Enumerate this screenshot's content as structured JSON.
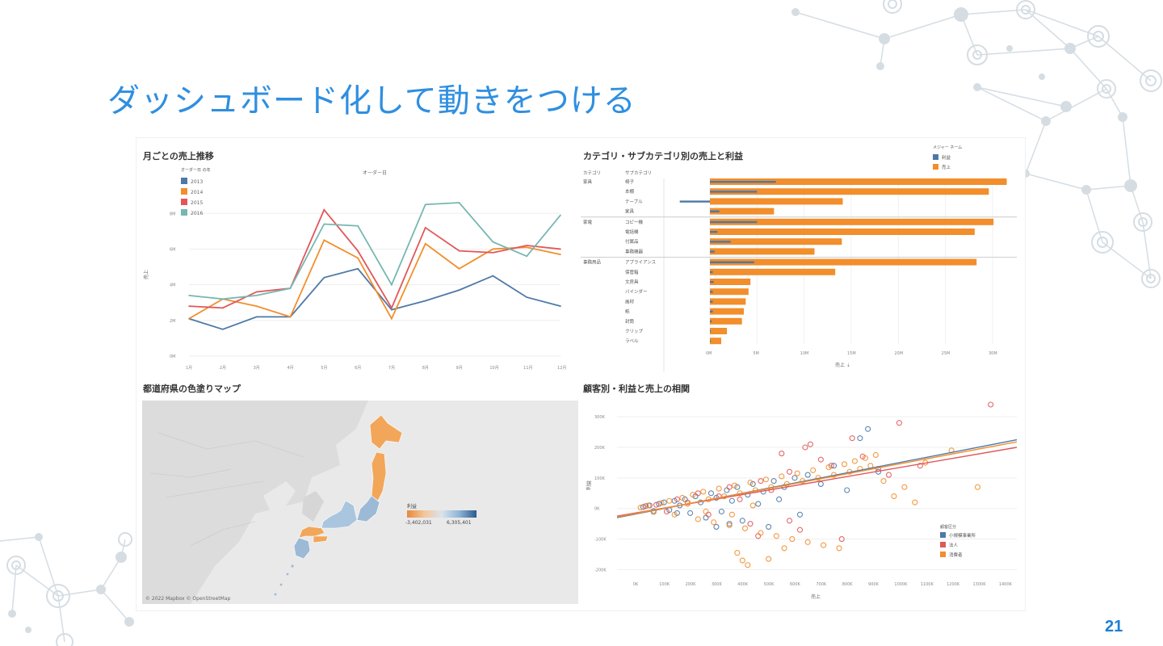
{
  "slide": {
    "title": "ダッシュボード化して動きをつける",
    "page_number": "21"
  },
  "colors": {
    "title": "#2f8fe0",
    "y2013": "#4e79a7",
    "y2014": "#f28e2b",
    "y2015": "#e15759",
    "y2016": "#76b7b2",
    "profit": "#4e79a7",
    "sales": "#f28e2b",
    "small_business": "#4e79a7",
    "consumer": "#f28e2b",
    "corporate": "#e15759"
  },
  "decorations": {
    "icons": [
      "network-node-pattern"
    ]
  },
  "chart_data": [
    {
      "type": "line",
      "title": "月ごとの売上推移",
      "legend_title": "オーダー日 の年",
      "top_label": "オーダー日",
      "ylabel": "売上",
      "ytick_labels": [
        "0M",
        "2M",
        "4M",
        "6M",
        "8M"
      ],
      "ylim": [
        0,
        8.6
      ],
      "categories": [
        "1月",
        "2月",
        "3月",
        "4月",
        "5月",
        "6月",
        "7月",
        "8月",
        "9月",
        "10月",
        "11月",
        "12月"
      ],
      "series": [
        {
          "name": "2013",
          "color": "#4e79a7",
          "values": [
            2.1,
            1.5,
            2.2,
            2.2,
            4.4,
            4.9,
            2.6,
            3.1,
            3.7,
            4.5,
            3.3,
            2.8
          ]
        },
        {
          "name": "2014",
          "color": "#f28e2b",
          "values": [
            2.1,
            3.2,
            2.8,
            2.2,
            6.5,
            5.5,
            2.1,
            6.3,
            4.9,
            6.0,
            6.1,
            5.7
          ]
        },
        {
          "name": "2015",
          "color": "#e15759",
          "values": [
            2.8,
            2.7,
            3.6,
            3.8,
            8.2,
            5.9,
            2.7,
            7.2,
            5.9,
            5.8,
            6.2,
            6.0
          ]
        },
        {
          "name": "2016",
          "color": "#76b7b2",
          "values": [
            3.4,
            3.2,
            3.4,
            3.8,
            7.4,
            7.3,
            4.0,
            8.5,
            8.6,
            6.4,
            5.6,
            7.9
          ]
        }
      ]
    },
    {
      "type": "bar",
      "title": "カテゴリ・サブカテゴリ別の売上と利益",
      "legend_title": "メジャー ネーム",
      "col_header_category": "カテゴリ",
      "col_header_subcategory": "サブカテゴリ",
      "xlabel": "売上 ⇣",
      "xtick_labels": [
        "0M",
        "5M",
        "10M",
        "15M",
        "20M",
        "25M",
        "30M"
      ],
      "xlim": [
        0,
        30
      ],
      "groups": [
        {
          "name": "家具",
          "rows": [
            {
              "label": "椅子",
              "sales": 31.5,
              "profit": 7.0
            },
            {
              "label": "本棚",
              "sales": 29.6,
              "profit": 5.0
            },
            {
              "label": "テーブル",
              "sales": 14.1,
              "profit": -3.2
            },
            {
              "label": "家具",
              "sales": 6.8,
              "profit": 1.0
            }
          ]
        },
        {
          "name": "家電",
          "rows": [
            {
              "label": "コピー機",
              "sales": 30.1,
              "profit": 5.0
            },
            {
              "label": "電話機",
              "sales": 28.1,
              "profit": 0.8
            },
            {
              "label": "付属品",
              "sales": 14.0,
              "profit": 2.2
            },
            {
              "label": "事務機器",
              "sales": 11.1,
              "profit": 0.5
            }
          ]
        },
        {
          "name": "事務用品",
          "rows": [
            {
              "label": "アプライアンス",
              "sales": 28.3,
              "profit": 4.7
            },
            {
              "label": "保管箱",
              "sales": 13.3,
              "profit": 0.3
            },
            {
              "label": "文房具",
              "sales": 4.3,
              "profit": 0.4
            },
            {
              "label": "バインダー",
              "sales": 4.1,
              "profit": 0.3
            },
            {
              "label": "画材",
              "sales": 3.8,
              "profit": 0.3
            },
            {
              "label": "紙",
              "sales": 3.6,
              "profit": 0.3
            },
            {
              "label": "封筒",
              "sales": 3.4,
              "profit": 0.2
            },
            {
              "label": "クリップ",
              "sales": 1.8,
              "profit": 0.1
            },
            {
              "label": "ラベル",
              "sales": 1.2,
              "profit": 0.1
            }
          ]
        }
      ],
      "series": [
        {
          "name": "利益",
          "color": "#4e79a7"
        },
        {
          "name": "売上",
          "color": "#f28e2b"
        }
      ]
    },
    {
      "type": "map",
      "title": "都道府県の色塗りマップ",
      "legend_title": "利益",
      "legend_min": "-3,402,031",
      "legend_max": "6,305,401",
      "credit": "© 2022 Mapbox © OpenStreetMap"
    },
    {
      "type": "scatter",
      "title": "顧客別・利益と売上の相関",
      "xlabel": "売上",
      "ylabel": "利益",
      "legend_title": "顧客区分",
      "xtick_labels": [
        "0K",
        "100K",
        "200K",
        "300K",
        "400K",
        "500K",
        "600K",
        "700K",
        "800K",
        "900K",
        "1000K",
        "1100K",
        "1200K",
        "1300K",
        "1400K"
      ],
      "ytick_labels": [
        "-200K",
        "-100K",
        "0K",
        "100K",
        "200K",
        "300K"
      ],
      "xlim": [
        -80,
        1450
      ],
      "ylim": [
        -220,
        340
      ],
      "series": [
        {
          "name": "小規模事業所",
          "color": "#4e79a7",
          "points": [
            [
              20,
              5
            ],
            [
              45,
              10
            ],
            [
              60,
              -8
            ],
            [
              80,
              15
            ],
            [
              100,
              20
            ],
            [
              120,
              -5
            ],
            [
              140,
              25
            ],
            [
              160,
              10
            ],
            [
              180,
              30
            ],
            [
              200,
              -15
            ],
            [
              220,
              40
            ],
            [
              240,
              20
            ],
            [
              260,
              -30
            ],
            [
              280,
              50
            ],
            [
              300,
              35
            ],
            [
              320,
              -10
            ],
            [
              340,
              60
            ],
            [
              360,
              25
            ],
            [
              380,
              70
            ],
            [
              400,
              -40
            ],
            [
              420,
              45
            ],
            [
              440,
              80
            ],
            [
              460,
              15
            ],
            [
              480,
              55
            ],
            [
              500,
              -60
            ],
            [
              520,
              90
            ],
            [
              540,
              30
            ],
            [
              560,
              70
            ],
            [
              600,
              100
            ],
            [
              620,
              -20
            ],
            [
              650,
              110
            ],
            [
              700,
              80
            ],
            [
              750,
              140
            ],
            [
              800,
              60
            ],
            [
              850,
              230
            ],
            [
              880,
              260
            ],
            [
              920,
              120
            ],
            [
              300,
              -60
            ],
            [
              350,
              -50
            ],
            [
              150,
              -15
            ]
          ]
        },
        {
          "name": "法人",
          "color": "#e15759",
          "points": [
            [
              30,
              8
            ],
            [
              70,
              12
            ],
            [
              110,
              -10
            ],
            [
              150,
              30
            ],
            [
              190,
              20
            ],
            [
              230,
              50
            ],
            [
              270,
              -20
            ],
            [
              310,
              40
            ],
            [
              350,
              70
            ],
            [
              390,
              30
            ],
            [
              430,
              -50
            ],
            [
              470,
              90
            ],
            [
              510,
              60
            ],
            [
              550,
              180
            ],
            [
              580,
              120
            ],
            [
              620,
              -70
            ],
            [
              660,
              210
            ],
            [
              700,
              160
            ],
            [
              740,
              140
            ],
            [
              780,
              -100
            ],
            [
              820,
              230
            ],
            [
              860,
              170
            ],
            [
              920,
              130
            ],
            [
              960,
              110
            ],
            [
              1000,
              280
            ],
            [
              1080,
              140
            ],
            [
              1350,
              340
            ],
            [
              580,
              -40
            ],
            [
              460,
              -90
            ],
            [
              640,
              200
            ]
          ]
        },
        {
          "name": "消費者",
          "color": "#f28e2b",
          "points": [
            [
              10,
              3
            ],
            [
              40,
              10
            ],
            [
              60,
              -12
            ],
            [
              90,
              18
            ],
            [
              120,
              25
            ],
            [
              140,
              -20
            ],
            [
              170,
              35
            ],
            [
              190,
              15
            ],
            [
              210,
              45
            ],
            [
              230,
              -35
            ],
            [
              250,
              55
            ],
            [
              270,
              30
            ],
            [
              290,
              -45
            ],
            [
              310,
              65
            ],
            [
              330,
              40
            ],
            [
              350,
              -55
            ],
            [
              370,
              75
            ],
            [
              390,
              50
            ],
            [
              410,
              -65
            ],
            [
              430,
              85
            ],
            [
              450,
              60
            ],
            [
              470,
              -80
            ],
            [
              490,
              95
            ],
            [
              510,
              70
            ],
            [
              530,
              -90
            ],
            [
              550,
              105
            ],
            [
              570,
              80
            ],
            [
              590,
              -100
            ],
            [
              610,
              115
            ],
            [
              630,
              90
            ],
            [
              650,
              -110
            ],
            [
              670,
              125
            ],
            [
              690,
              100
            ],
            [
              710,
              -120
            ],
            [
              730,
              135
            ],
            [
              750,
              110
            ],
            [
              770,
              -130
            ],
            [
              790,
              145
            ],
            [
              810,
              120
            ],
            [
              830,
              155
            ],
            [
              850,
              130
            ],
            [
              870,
              165
            ],
            [
              890,
              140
            ],
            [
              910,
              175
            ],
            [
              940,
              90
            ],
            [
              980,
              40
            ],
            [
              1020,
              70
            ],
            [
              1060,
              20
            ],
            [
              1100,
              150
            ],
            [
              1200,
              190
            ],
            [
              1300,
              70
            ],
            [
              400,
              -170
            ],
            [
              420,
              -185
            ],
            [
              380,
              -145
            ],
            [
              500,
              -165
            ],
            [
              560,
              -130
            ],
            [
              440,
              10
            ],
            [
              360,
              -20
            ],
            [
              260,
              -10
            ]
          ]
        }
      ]
    }
  ]
}
